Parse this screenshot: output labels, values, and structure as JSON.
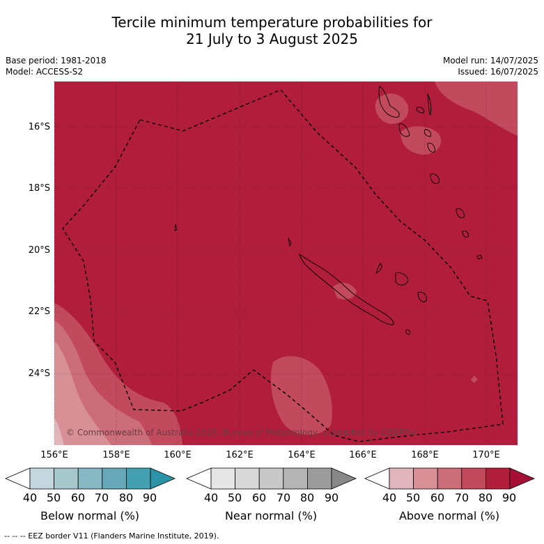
{
  "header": {
    "title_line1": "Tercile minimum temperature probabilities for",
    "title_line2": "21 July to 3 August 2025",
    "base_period": "Base period: 1981-2018",
    "model": "Model: ACCESS-S2",
    "model_run": "Model run: 14/07/2025",
    "issued": "Issued: 16/07/2025"
  },
  "map": {
    "lat_labels": [
      "16°S",
      "18°S",
      "20°S",
      "22°S",
      "24°S"
    ],
    "lon_labels": [
      "156°E",
      "158°E",
      "160°E",
      "162°E",
      "164°E",
      "166°E",
      "168°E",
      "170°E"
    ],
    "copyright": "© Commonwealth of Australia 2025, Bureau of Meteorology, supported by COSPPac",
    "colors": {
      "above_80_90": "#b01e3b",
      "above_70_80": "#c24a5d",
      "above_60_70": "#cc6e79",
      "above_50_60": "#d89097",
      "above_40_50": "#e0b5bb"
    }
  },
  "colorbars": [
    {
      "title": "Below normal (%)",
      "ticks": [
        "40",
        "50",
        "60",
        "70",
        "80",
        "90"
      ],
      "colors": [
        "#ffffff",
        "#c4d6de",
        "#a6c8cd",
        "#87b8c4",
        "#66a8b8",
        "#44a0b1",
        "#2b93a5"
      ]
    },
    {
      "title": "Near normal (%)",
      "ticks": [
        "40",
        "50",
        "60",
        "70",
        "80",
        "90"
      ],
      "colors": [
        "#ffffff",
        "#e6e6e6",
        "#d8d8d8",
        "#c8c8c8",
        "#b4b4b4",
        "#9c9c9c",
        "#888888"
      ]
    },
    {
      "title": "Above normal (%)",
      "ticks": [
        "40",
        "50",
        "60",
        "70",
        "80",
        "90"
      ],
      "colors": [
        "#ffffff",
        "#e0b5bb",
        "#d89097",
        "#cc6e79",
        "#c24a5d",
        "#b01e3b",
        "#a51036"
      ]
    }
  ],
  "footer": {
    "legend_text": "--  --  -- EEZ border V11 (Flanders Marine Institute, 2019)."
  }
}
